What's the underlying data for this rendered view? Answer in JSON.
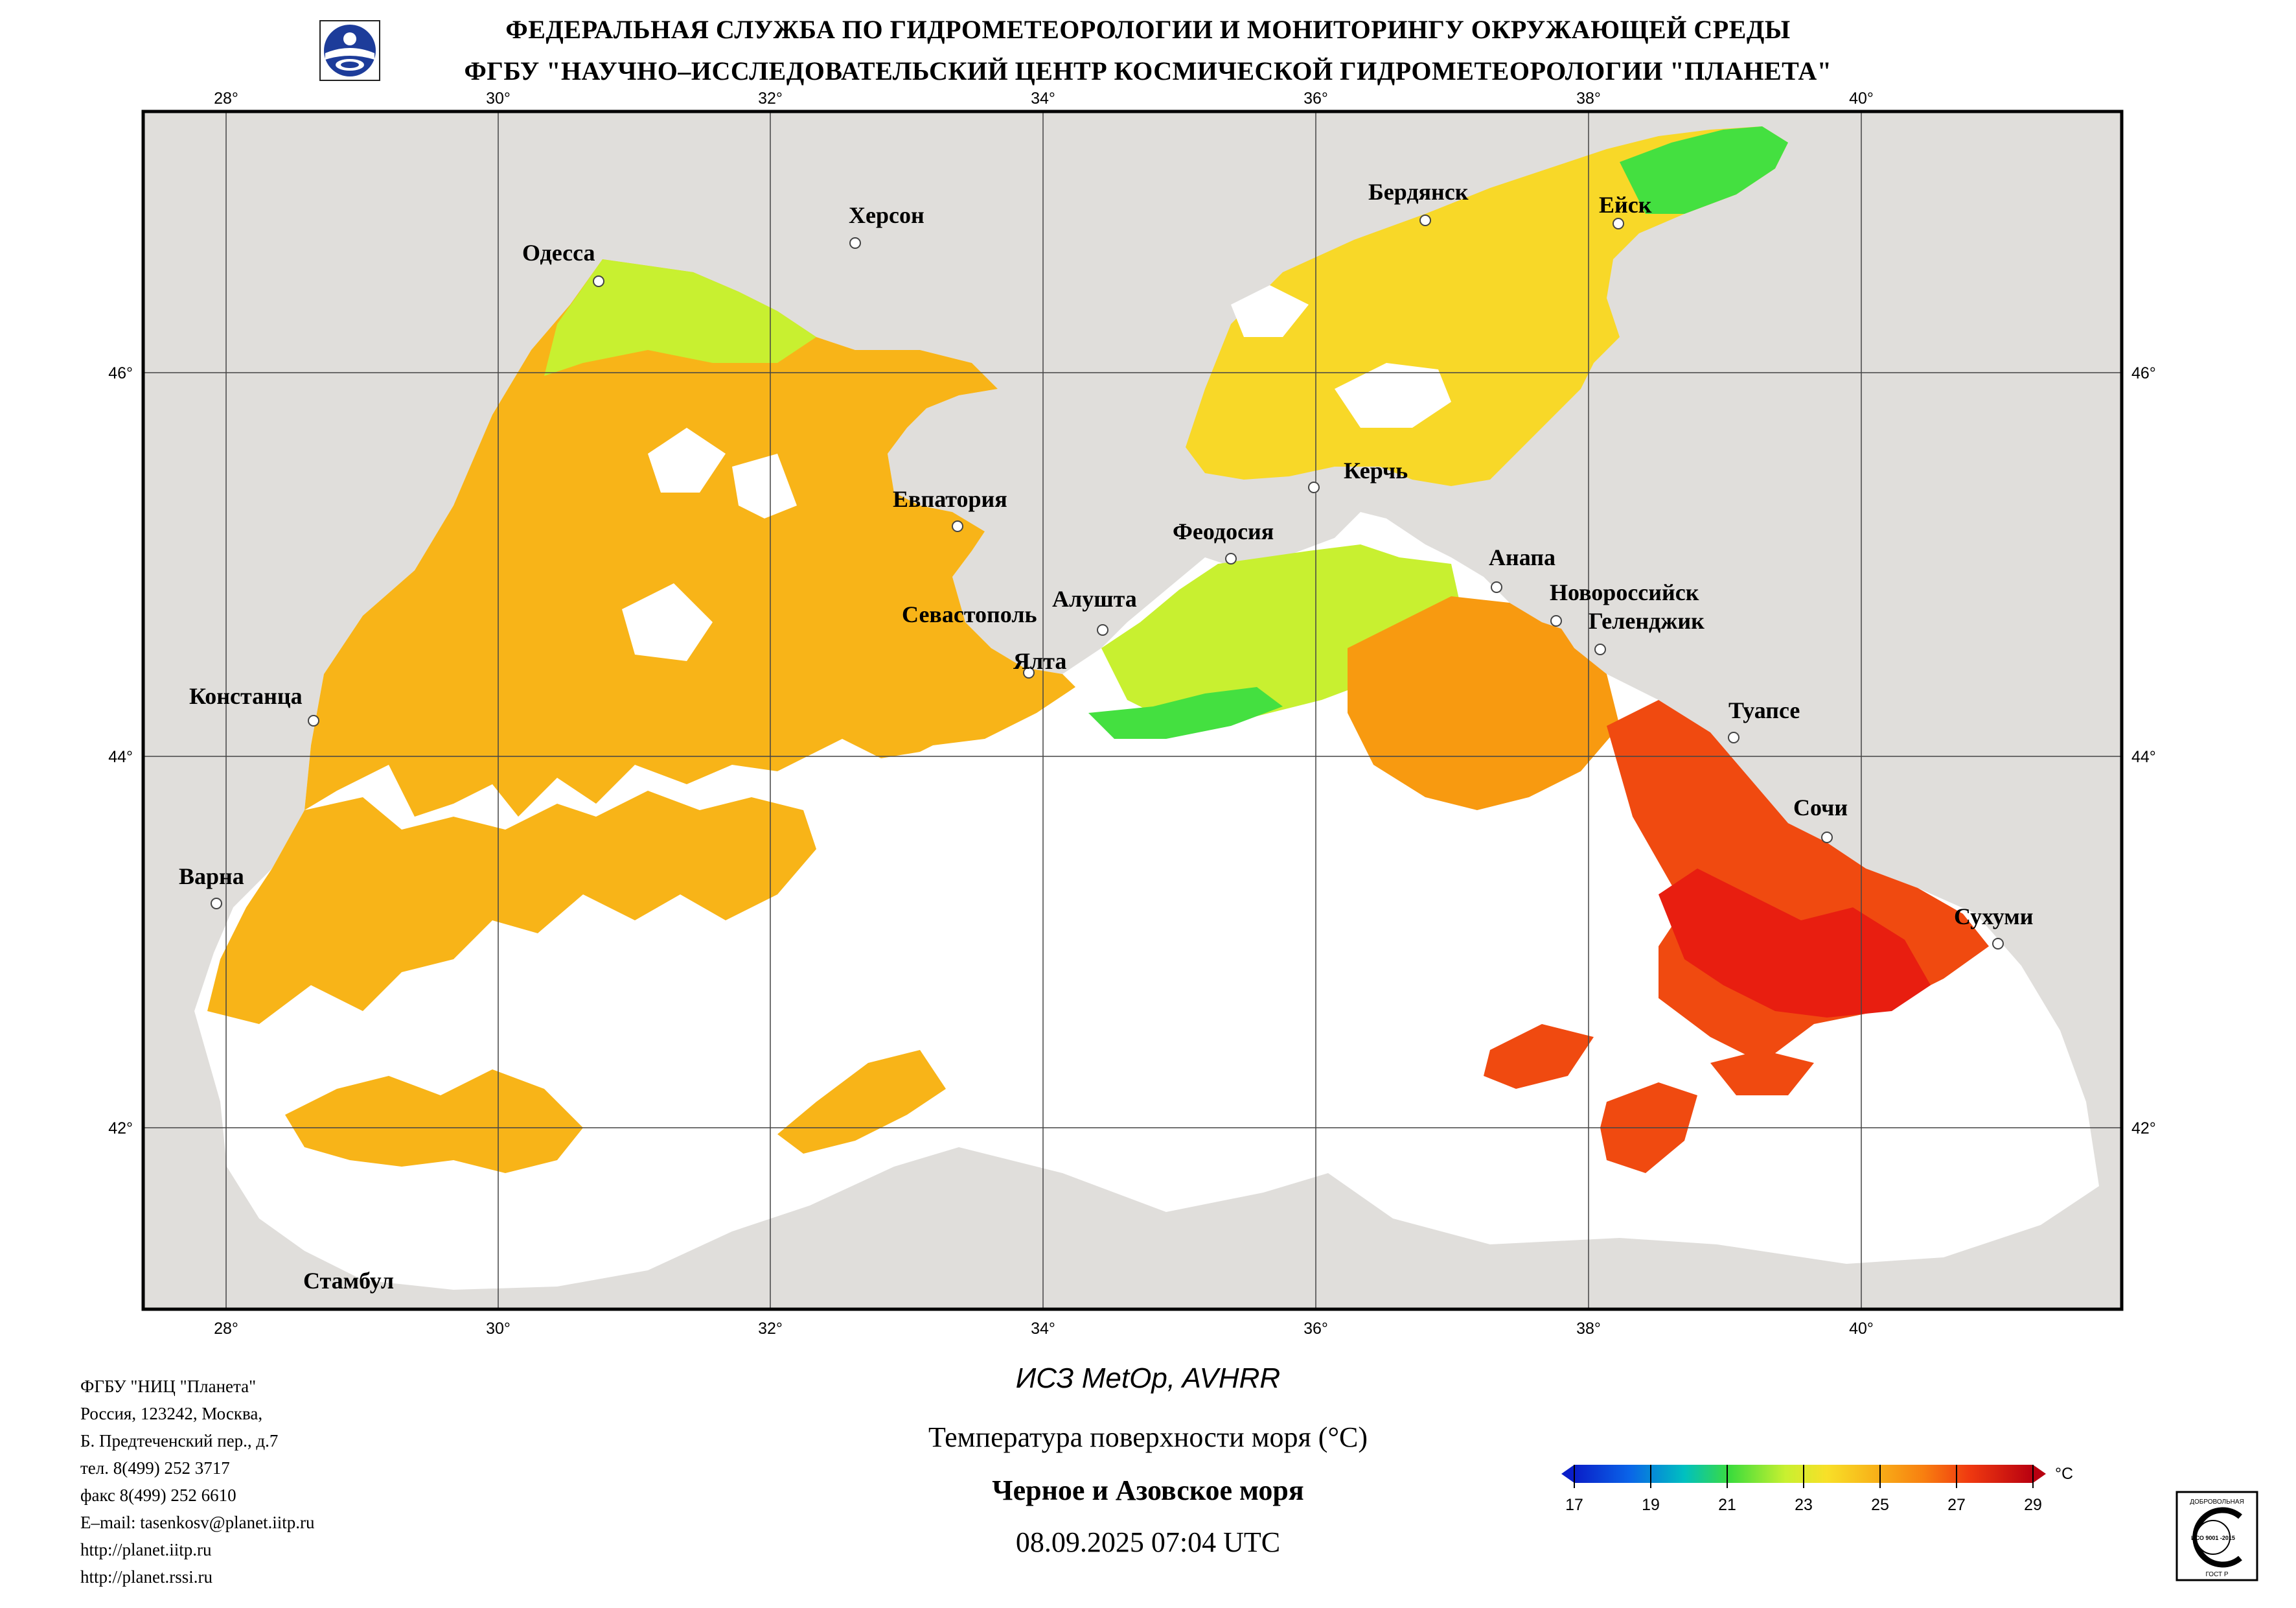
{
  "header": {
    "line1": "ФЕДЕРАЛЬНАЯ СЛУЖБА ПО ГИДРОМЕТЕОРОЛОГИИ И МОНИТОРИНГУ ОКРУЖАЮЩЕЙ СРЕДЫ",
    "line2": "ФГБУ \"НАУЧНО–ИССЛЕДОВАТЕЛЬСКИЙ ЦЕНТР КОСМИЧЕСКОЙ ГИДРОМЕТЕОРОЛОГИИ \"ПЛАНЕТА\""
  },
  "map": {
    "lon_ticks": [
      "28°",
      "30°",
      "32°",
      "34°",
      "36°",
      "38°",
      "40°"
    ],
    "lat_ticks": [
      "46°",
      "44°",
      "42°"
    ],
    "cities": {
      "odessa": "Одесса",
      "kherson": "Херсон",
      "berdyansk": "Бердянск",
      "yeysk": "Ейск",
      "kerch": "Керчь",
      "evpatoria": "Евпатория",
      "feodosia": "Феодосия",
      "anapa": "Анапа",
      "novorossiysk": "Новороссийск",
      "gelendzhik": "Геленджик",
      "sevastopol": "Севастополь",
      "alushta": "Алушта",
      "yalta": "Ялта",
      "constanta": "Констанца",
      "tuapse": "Туапсе",
      "sochi": "Сочи",
      "varna": "Варна",
      "sukhumi": "Сухуми",
      "istanbul": "Стамбул"
    },
    "colors": {
      "land": "#e0dedb",
      "cloud": "#ffffff",
      "sst_19": "#00c8a8",
      "sst_21": "#44e040",
      "sst_22": "#c8f030",
      "sst_23": "#f8d828",
      "sst_24": "#f8b418",
      "sst_25": "#f89a10",
      "sst_27": "#f04a10",
      "sst_28": "#e81e10"
    }
  },
  "info": {
    "lines": [
      "ФГБУ \"НИЦ \"Планета\"",
      "Россия, 123242, Москва,",
      "Б. Предтеченский пер., д.7",
      "тел. 8(499) 252 3717",
      "факс 8(499) 252 6610",
      "E–mail: tasenkosv@planet.iitp.ru",
      "http://planet.iitp.ru",
      "http://planet.rssi.ru"
    ]
  },
  "caption": {
    "satellite": "ИСЗ MetOp, AVHRR",
    "parameter": "Температура поверхности моря (°C)",
    "region": "Черное и Азовское моря",
    "datetime": "08.09.2025 07:04 UTC"
  },
  "colorbar": {
    "ticks": [
      "17",
      "19",
      "21",
      "23",
      "25",
      "27",
      "29"
    ],
    "unit": "°C",
    "min": 17,
    "max": 29
  },
  "cert": {
    "top": "ДОБРОВОЛЬНАЯ",
    "mid": "ИСО 9001 -2015",
    "bottom": "ГОСТ Р"
  }
}
